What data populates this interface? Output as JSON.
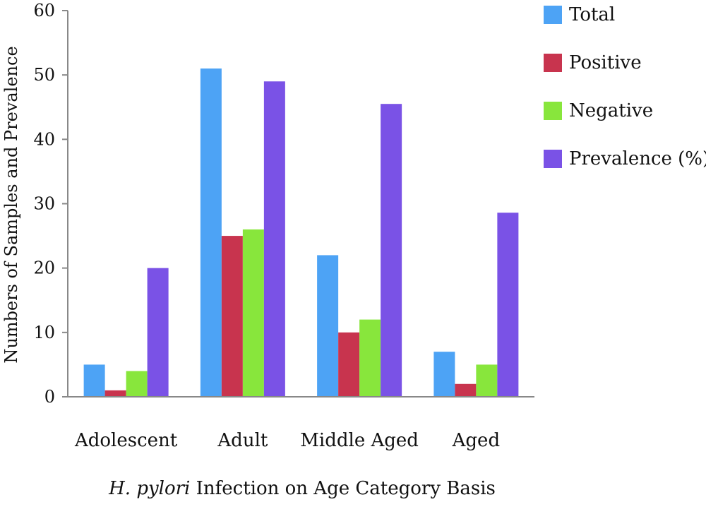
{
  "chart_data": {
    "type": "bar",
    "title": "",
    "xlabel_italic": "H. pylori",
    "xlabel_rest": " Infection on Age Category Basis",
    "ylabel": "Numbers of Samples and Prevalence",
    "ylim": [
      0,
      60
    ],
    "yticks": [
      "0",
      "10",
      "20",
      "30",
      "40",
      "50",
      "60"
    ],
    "categories": [
      "Adolescent",
      "Adult",
      "Middle Aged",
      "Aged"
    ],
    "series": [
      {
        "name": "Total",
        "color": "#4da3f5",
        "values": [
          5,
          51,
          22,
          7
        ]
      },
      {
        "name": "Positive",
        "color": "#c8344e",
        "values": [
          1,
          25,
          10,
          2
        ]
      },
      {
        "name": "Negative",
        "color": "#88e63c",
        "values": [
          4,
          26,
          12,
          5
        ]
      },
      {
        "name": "Prevalence (%)",
        "color": "#7a52e6",
        "values": [
          20,
          49,
          45.5,
          28.6
        ]
      }
    ],
    "grid": false,
    "legend_position": "top-right"
  }
}
